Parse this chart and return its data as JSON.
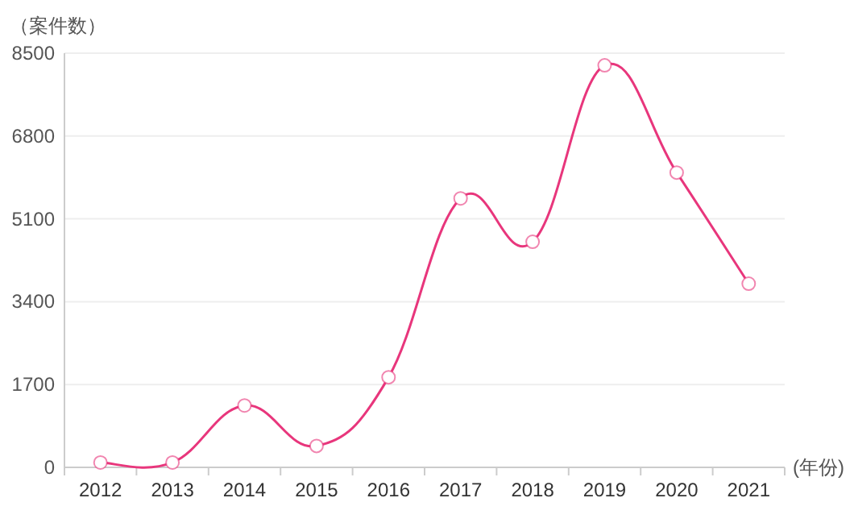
{
  "chart_data": {
    "type": "line",
    "ylabel": "（案件数）",
    "xlabel": "(年份)",
    "categories": [
      "2012",
      "2013",
      "2014",
      "2015",
      "2016",
      "2017",
      "2018",
      "2019",
      "2020",
      "2021"
    ],
    "values": [
      100,
      100,
      1270,
      440,
      1850,
      5520,
      4630,
      8250,
      6050,
      3770
    ],
    "color": "#e8367c",
    "ylim": [
      0,
      8500
    ],
    "yticks": [
      0,
      1700,
      3400,
      5100,
      6800,
      8500
    ],
    "grid": "y",
    "marker": "circle",
    "line_style": "solid"
  }
}
